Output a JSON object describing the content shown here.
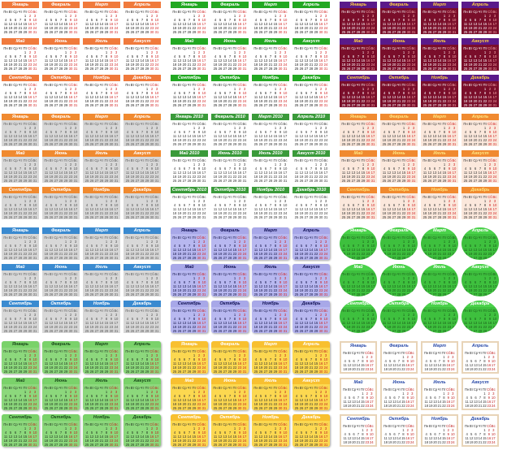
{
  "months": [
    "Январь",
    "Февраль",
    "Март",
    "Апрель",
    "Май",
    "Июнь",
    "Июль",
    "Август",
    "Сентябрь",
    "Октябрь",
    "Ноябрь",
    "Декабрь"
  ],
  "months_dated": [
    "Январь 2010",
    "Февраль 2010",
    "Март 2010",
    "Апрель 2010",
    "Май 2010",
    "Июнь 2010",
    "Июль 2010",
    "Август 2010",
    "Сентябрь 2010",
    "Октябрь 2010",
    "Ноябрь 2010",
    "Декабрь 2010"
  ],
  "weekdays": [
    "Пн",
    "Вт",
    "Ср",
    "Чт",
    "Пт",
    "Сб",
    "Вс"
  ],
  "styles": [
    {
      "name": "orange-flat",
      "hdr_bg": "#f07a3c",
      "hdr_fg": "#ffffff",
      "body_bg": "#ffffff",
      "day_fg": "#222222",
      "weekend_fg": "#d02020"
    },
    {
      "name": "green-flat",
      "hdr_bg": "#22a822",
      "hdr_fg": "#ffffff",
      "body_bg": "#ffffff",
      "day_fg": "#222222",
      "weekend_fg": "#d02020"
    },
    {
      "name": "maroon-purple",
      "hdr_bg": "#5a1a8a",
      "hdr_fg": "#ffd040",
      "body_bg": "#7a0e2a",
      "day_fg": "#ffffff",
      "weekend_fg": "#ffb0b0"
    },
    {
      "name": "orange-grid",
      "hdr_bg": "#f08a30",
      "hdr_fg": "#ffffff",
      "body_bg": "#d8d8d8",
      "day_fg": "#555555",
      "weekend_fg": "#555555"
    },
    {
      "name": "green-grid",
      "hdr_bg": "#3a9a3a",
      "hdr_fg": "#ffffff",
      "body_bg": "#ffffff",
      "day_fg": "#333333",
      "weekend_fg": "#333333"
    },
    {
      "name": "orange-table",
      "hdr_bg": "#f08a30",
      "hdr_fg": "#ffe680",
      "body_bg": "#fbe8dc",
      "day_fg": "#333333",
      "weekend_fg": "#d02020"
    },
    {
      "name": "blue-grid",
      "hdr_bg": "#3a8ad0",
      "hdr_fg": "#ffffff",
      "body_bg": "#d8d8d8",
      "day_fg": "#555555",
      "weekend_fg": "#555555"
    },
    {
      "name": "lavender",
      "hdr_bg": "#a8a8e8",
      "hdr_fg": "#111155",
      "body_bg": "#b8b8f0",
      "day_fg": "#111144",
      "weekend_fg": "#d02020"
    },
    {
      "name": "green-circle",
      "hdr_bg": "#4ad24a",
      "hdr_fg": "#ffffff",
      "body_bg": "#3ec03e",
      "day_fg": "#1a5a1a",
      "weekend_fg": "#1a5a1a"
    },
    {
      "name": "green-note",
      "hdr_bg": "#7ad26a",
      "hdr_fg": "#1a4a1a",
      "body_bg": "#8cd87c",
      "day_fg": "#223322",
      "weekend_fg": "#c02020"
    },
    {
      "name": "yellow-note",
      "hdr_bg": "#f8c030",
      "hdr_fg": "#ffffff",
      "body_bg": "#fcd850",
      "day_fg": "#333333",
      "weekend_fg": "#c02020"
    },
    {
      "name": "blue-script",
      "hdr_bg": "#ffffff",
      "hdr_fg": "#2a4aa8",
      "body_bg": "#ffffff",
      "day_fg": "#333333",
      "weekend_fg": "#c02020"
    }
  ],
  "sample_weeks": [
    [
      "",
      "",
      "",
      "",
      "1",
      "2",
      "3"
    ],
    [
      "4",
      "5",
      "6",
      "7",
      "8",
      "9",
      "10"
    ],
    [
      "11",
      "12",
      "13",
      "14",
      "15",
      "16",
      "17"
    ],
    [
      "18",
      "19",
      "20",
      "21",
      "22",
      "23",
      "24"
    ],
    [
      "25",
      "26",
      "27",
      "28",
      "29",
      "30",
      "31"
    ]
  ]
}
